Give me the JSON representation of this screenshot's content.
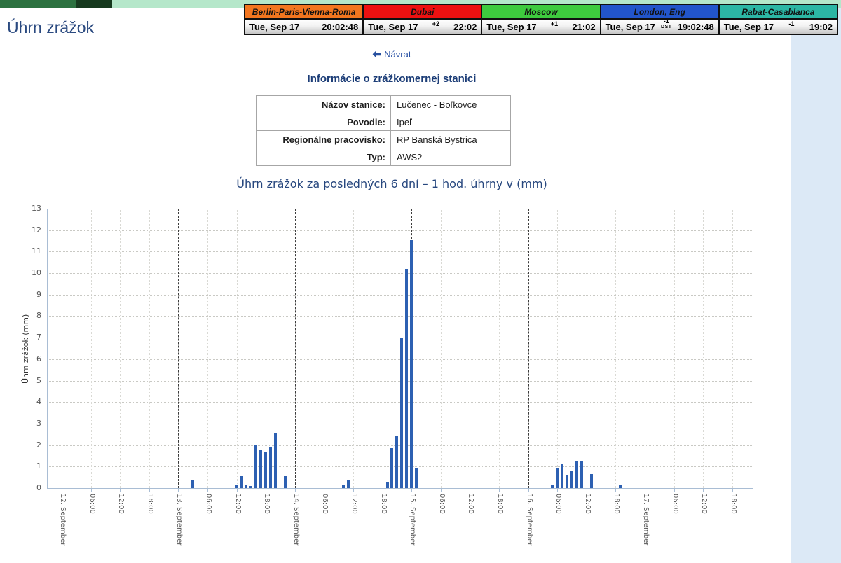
{
  "page": {
    "title": "Úhrn zrážok",
    "back_link_label": "Návrat",
    "accent_navy": "#1c3d77",
    "sidebar_color": "#dce9f6"
  },
  "clocks": {
    "shared_date": "Tue, Sep 17",
    "cities": [
      {
        "name": "Berlin-Paris-Vienna-Roma",
        "color": "#f3761f",
        "offset_sup": "",
        "offset_label": "",
        "time": "20:02:48"
      },
      {
        "name": "Dubai",
        "color": "#ed1111",
        "offset_sup": "+2",
        "offset_label": "",
        "time": "22:02"
      },
      {
        "name": "Moscow",
        "color": "#3ecb3e",
        "offset_sup": "+1",
        "offset_label": "",
        "time": "21:02"
      },
      {
        "name": "London, Eng",
        "color": "#2255cb",
        "offset_sup": "-1",
        "offset_label": "DST",
        "time": "19:02:48"
      },
      {
        "name": "Rabat-Casablanca",
        "color": "#2cb7a5",
        "offset_sup": "-1",
        "offset_label": "",
        "time": "19:02"
      }
    ]
  },
  "station_info": {
    "heading": "Informácie o zrážkomernej stanici",
    "rows": [
      {
        "label": "Názov stanice:",
        "value": "Lučenec - Boľkovce"
      },
      {
        "label": "Povodie:",
        "value": "Ipeľ"
      },
      {
        "label": "Regionálne pracovisko:",
        "value": "RP Banská Bystrica"
      },
      {
        "label": "Typ:",
        "value": "AWS2"
      }
    ]
  },
  "chart_data": {
    "type": "bar",
    "title": "Úhrn zrážok za posledných 6 dní – 1 hod. úhrny v (mm)",
    "xlabel": "",
    "ylabel": "Úhrn zrážok (mm)",
    "ylim": [
      0,
      13
    ],
    "y_ticks": [
      0,
      1,
      2,
      3,
      4,
      5,
      6,
      7,
      8,
      9,
      10,
      11,
      12,
      13
    ],
    "grid": true,
    "legend": "none",
    "bar_color": "#2d60b2",
    "days": [
      "12. September",
      "13. September",
      "14. September",
      "15. September",
      "16. September",
      "17. September"
    ],
    "time_ticks": [
      "06:00",
      "12:00",
      "18:00"
    ],
    "points": [
      {
        "date": "13. September",
        "hour": "03:00",
        "value": 0.35
      },
      {
        "date": "13. September",
        "hour": "12:00",
        "value": 0.15
      },
      {
        "date": "13. September",
        "hour": "13:00",
        "value": 0.55
      },
      {
        "date": "13. September",
        "hour": "14:00",
        "value": 0.15
      },
      {
        "date": "13. September",
        "hour": "15:00",
        "value": 0.1
      },
      {
        "date": "13. September",
        "hour": "16:00",
        "value": 2.0
      },
      {
        "date": "13. September",
        "hour": "17:00",
        "value": 1.75
      },
      {
        "date": "13. September",
        "hour": "18:00",
        "value": 1.65
      },
      {
        "date": "13. September",
        "hour": "19:00",
        "value": 1.9
      },
      {
        "date": "13. September",
        "hour": "20:00",
        "value": 2.55
      },
      {
        "date": "13. September",
        "hour": "22:00",
        "value": 0.55
      },
      {
        "date": "14. September",
        "hour": "10:00",
        "value": 0.15
      },
      {
        "date": "14. September",
        "hour": "11:00",
        "value": 0.35
      },
      {
        "date": "14. September",
        "hour": "19:00",
        "value": 0.3
      },
      {
        "date": "14. September",
        "hour": "20:00",
        "value": 1.85
      },
      {
        "date": "14. September",
        "hour": "21:00",
        "value": 2.4
      },
      {
        "date": "14. September",
        "hour": "22:00",
        "value": 7.0
      },
      {
        "date": "14. September",
        "hour": "23:00",
        "value": 10.2
      },
      {
        "date": "15. September",
        "hour": "00:00",
        "value": 11.55
      },
      {
        "date": "15. September",
        "hour": "01:00",
        "value": 0.9
      },
      {
        "date": "16. September",
        "hour": "05:00",
        "value": 0.15
      },
      {
        "date": "16. September",
        "hour": "06:00",
        "value": 0.9
      },
      {
        "date": "16. September",
        "hour": "07:00",
        "value": 1.1
      },
      {
        "date": "16. September",
        "hour": "08:00",
        "value": 0.6
      },
      {
        "date": "16. September",
        "hour": "09:00",
        "value": 0.8
      },
      {
        "date": "16. September",
        "hour": "10:00",
        "value": 1.25
      },
      {
        "date": "16. September",
        "hour": "11:00",
        "value": 1.25
      },
      {
        "date": "16. September",
        "hour": "13:00",
        "value": 0.65
      },
      {
        "date": "16. September",
        "hour": "19:00",
        "value": 0.15
      }
    ]
  }
}
